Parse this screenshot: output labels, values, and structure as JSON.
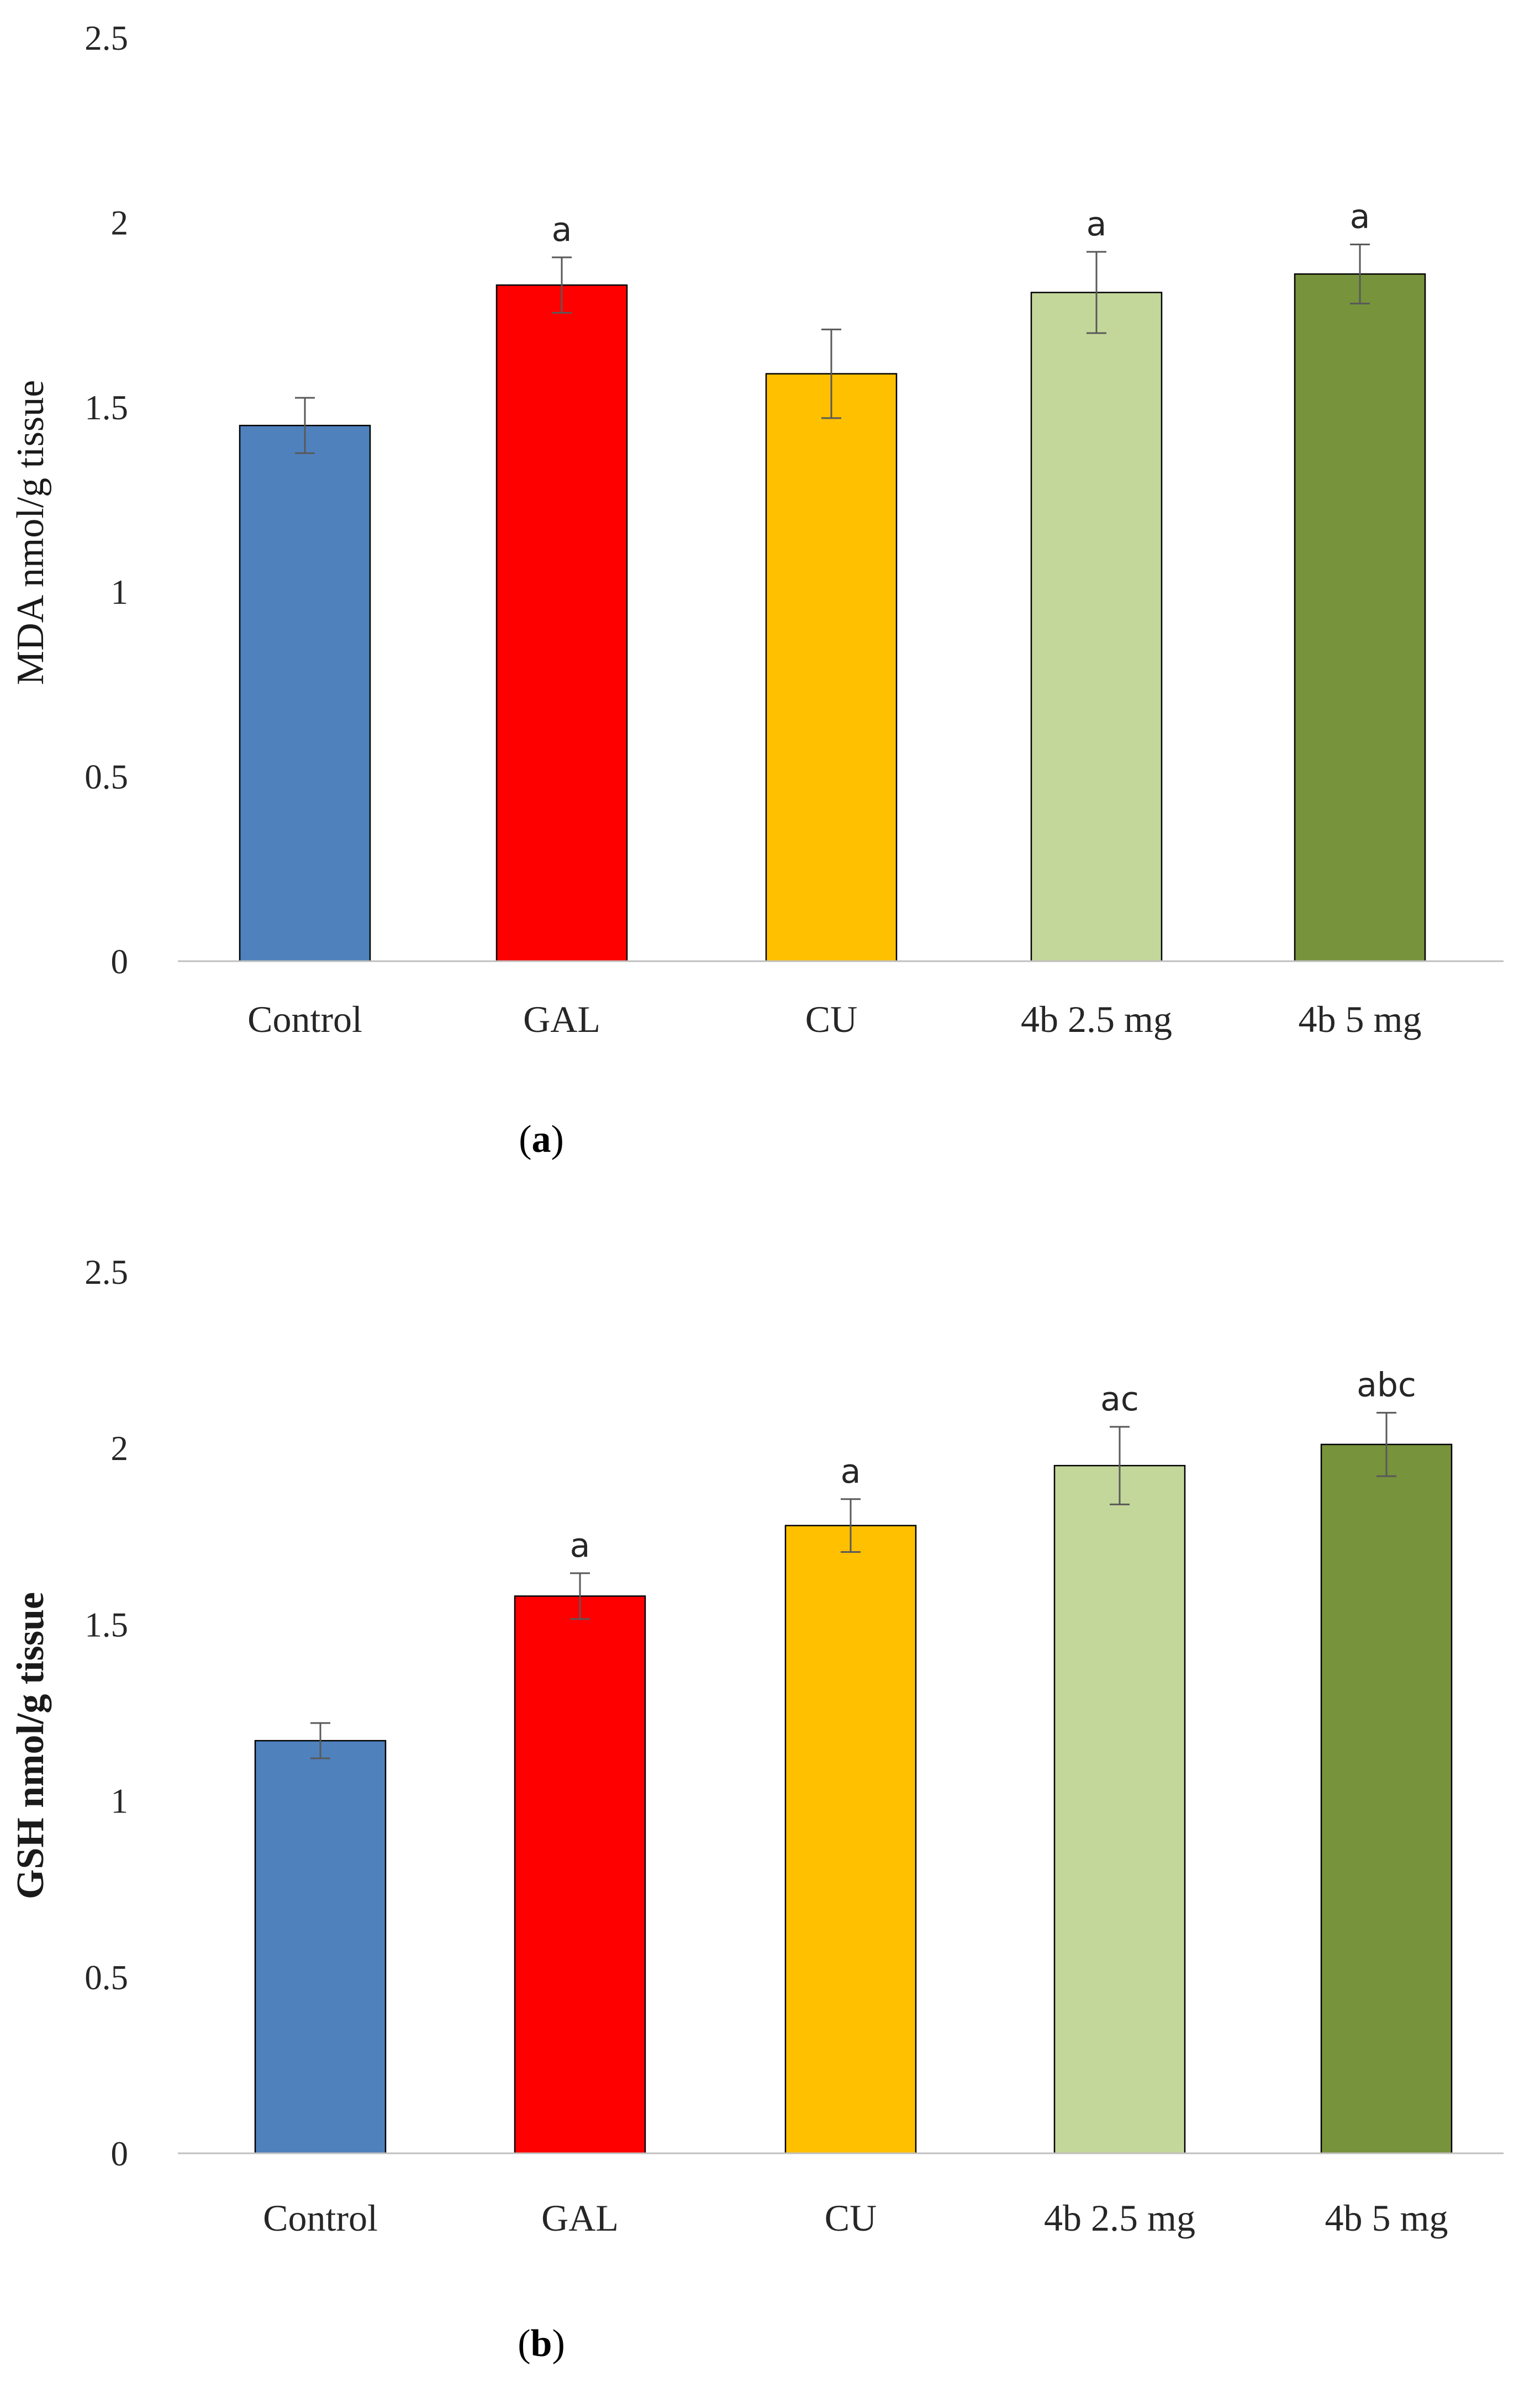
{
  "chart_data": [
    {
      "type": "bar",
      "caption_letter": "a",
      "ylabel": "MDA nmol/g tissue",
      "ylabel_bold": false,
      "ylim": [
        0,
        2.5
      ],
      "yticks": [
        "0",
        "0.5",
        "1",
        "1.5",
        "2",
        "2.5"
      ],
      "categories": [
        "Control",
        "GAL",
        "CU",
        "4b 2.5 mg",
        "4b 5 mg"
      ],
      "values": [
        1.45,
        1.83,
        1.59,
        1.81,
        1.86
      ],
      "errors": [
        0.075,
        0.075,
        0.12,
        0.11,
        0.08
      ],
      "significance": [
        "",
        "a",
        "",
        "a",
        "a"
      ],
      "colors": [
        "#4f81bd",
        "#ff0000",
        "#ffc000",
        "#c4d79b",
        "#77933c"
      ]
    },
    {
      "type": "bar",
      "caption_letter": "b",
      "ylabel": "GSH nmol/g tissue",
      "ylabel_bold": true,
      "ylim": [
        0,
        2.5
      ],
      "yticks": [
        "0",
        "0.5",
        "1",
        "1.5",
        "2",
        "2.5"
      ],
      "categories": [
        "Control",
        "GAL",
        "CU",
        "4b 2.5 mg",
        "4b 5 mg"
      ],
      "values": [
        1.17,
        1.58,
        1.78,
        1.95,
        2.01
      ],
      "errors": [
        0.05,
        0.065,
        0.075,
        0.11,
        0.09
      ],
      "significance": [
        "",
        "a",
        "a",
        "ac",
        "abc"
      ],
      "colors": [
        "#4f81bd",
        "#ff0000",
        "#ffc000",
        "#c4d79b",
        "#77933c"
      ]
    }
  ]
}
